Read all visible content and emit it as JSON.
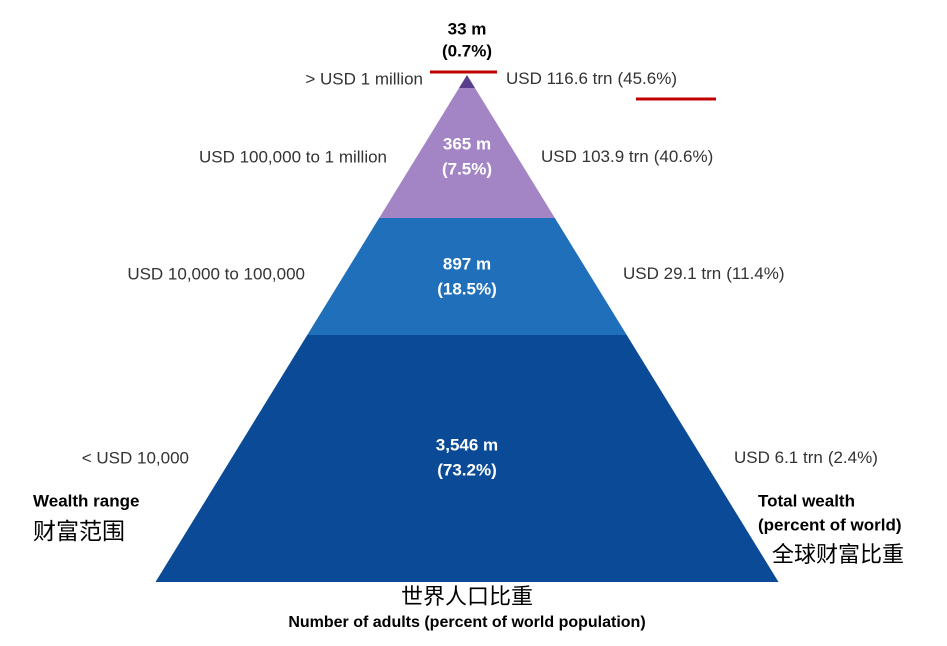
{
  "tiers": [
    {
      "population": "33 m",
      "share": "(0.7%)",
      "range": "> USD 1 million",
      "wealth": "USD 116.6 trn",
      "wealth_share": "(45.6%)"
    },
    {
      "population": "365 m",
      "share": "(7.5%)",
      "range": "USD 100,000  to 1 million",
      "wealth": "USD 103.9 trn",
      "wealth_share": "(40.6%)"
    },
    {
      "population": "897 m",
      "share": "(18.5%)",
      "range": "USD 10,000  to 100,000",
      "wealth": "USD 29.1 trn",
      "wealth_share": "(11.4%)"
    },
    {
      "population": "3,546 m",
      "share": "(73.2%)",
      "range": "<  USD 10,000",
      "wealth": "USD 6.1 trn",
      "wealth_share": "(2.4%)"
    }
  ],
  "left_title": "Wealth range",
  "left_title_cn": "财富范围",
  "right_title": "Total wealth",
  "right_subtitle": "(percent of world)",
  "right_title_cn": "全球财富比重",
  "bottom_title_cn": "世界人口比重",
  "bottom_title": "Number of adults (percent of world population)"
}
